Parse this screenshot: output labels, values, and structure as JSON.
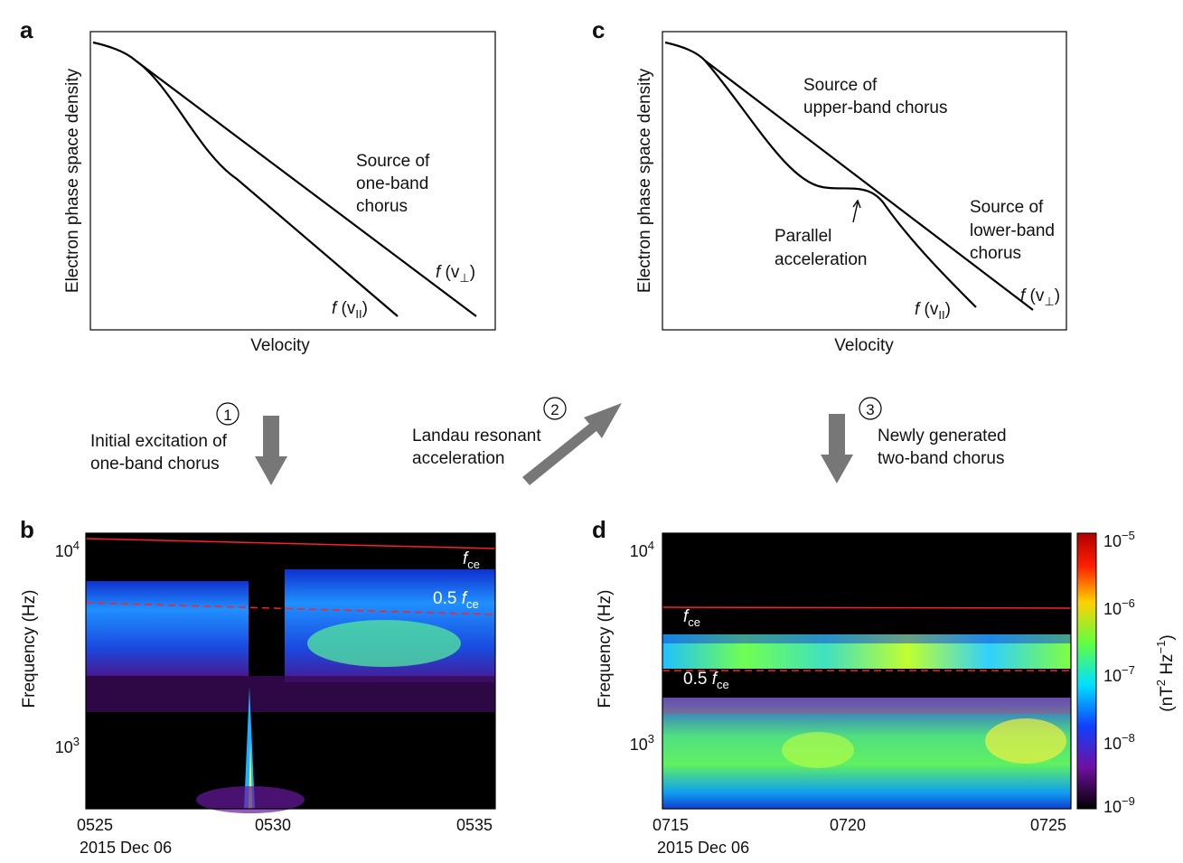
{
  "panel_a": {
    "letter": "a",
    "y_label": "Electron phase space density",
    "x_label": "Velocity",
    "source_label": [
      "Source of",
      "one-band",
      "chorus"
    ],
    "curve_parallel": {
      "f": "f",
      "v": " (v",
      "sub": "II",
      "close": ")"
    },
    "curve_perp": {
      "f": "f",
      "v": " (v",
      "sub": "⊥",
      "close": ")"
    }
  },
  "panel_c": {
    "letter": "c",
    "y_label": "Electron phase space density",
    "x_label": "Velocity",
    "upper_source": [
      "Source of",
      "upper-band chorus"
    ],
    "lower_source": [
      "Source of",
      "lower-band",
      "chorus"
    ],
    "parallel_label": [
      "Parallel",
      "acceleration"
    ],
    "curve_parallel": {
      "f": "f",
      "v": " (v",
      "sub": "II",
      "close": ")"
    },
    "curve_perp": {
      "f": "f",
      "v": " (v",
      "sub": "⊥",
      "close": ")"
    }
  },
  "steps": [
    {
      "number": "1",
      "lines": [
        "Initial excitation of",
        "one-band chorus"
      ]
    },
    {
      "number": "2",
      "lines": [
        "Landau resonant",
        "acceleration"
      ]
    },
    {
      "number": "3",
      "lines": [
        "Newly generated",
        "two-band chorus"
      ]
    }
  ],
  "panel_b": {
    "letter": "b",
    "y_label": "Frequency (Hz)",
    "y_ticks": [
      {
        "base": "10",
        "exp": "4"
      },
      {
        "base": "10",
        "exp": "3"
      }
    ],
    "x_ticks": [
      "0525",
      "0530",
      "0535"
    ],
    "date": "2015 Dec 06",
    "fce_label": {
      "f": "f",
      "sub": "ce"
    },
    "half_fce_label": {
      "prefix": "0.5 ",
      "f": "f",
      "sub": "ce"
    }
  },
  "panel_d": {
    "letter": "d",
    "y_label": "Frequency (Hz)",
    "y_ticks": [
      {
        "base": "10",
        "exp": "4"
      },
      {
        "base": "10",
        "exp": "3"
      }
    ],
    "x_ticks": [
      "0715",
      "0720",
      "0725"
    ],
    "date": "2015 Dec 06",
    "fce_label": {
      "f": "f",
      "sub": "ce"
    },
    "half_fce_label": {
      "prefix": "0.5 ",
      "f": "f",
      "sub": "ce"
    },
    "colorbar": {
      "ticks": [
        {
          "base": "10",
          "exp": "−5"
        },
        {
          "base": "10",
          "exp": "−6"
        },
        {
          "base": "10",
          "exp": "−7"
        },
        {
          "base": "10",
          "exp": "−8"
        },
        {
          "base": "10",
          "exp": "−9"
        }
      ],
      "label": {
        "open": "(nT",
        "exp1": "2",
        "mid": " Hz",
        "exp2": "−1",
        "close": ")"
      }
    }
  }
}
